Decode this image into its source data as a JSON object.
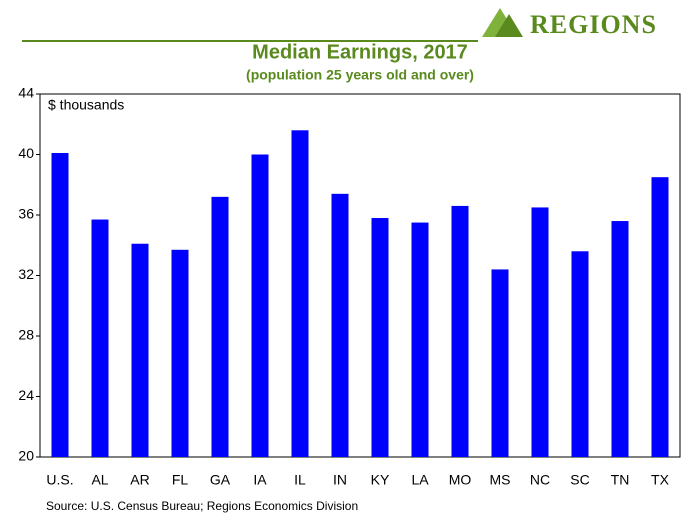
{
  "chart_data": {
    "type": "bar",
    "brand": "REGIONS",
    "title": "Median Earnings, 2017",
    "subtitle": "(population 25 years old and over)",
    "y_label": "$ thousands",
    "source": "Source: U.S. Census Bureau; Regions Economics Division",
    "categories": [
      "U.S.",
      "AL",
      "AR",
      "FL",
      "GA",
      "IA",
      "IL",
      "IN",
      "KY",
      "LA",
      "MO",
      "MS",
      "NC",
      "SC",
      "TN",
      "TX"
    ],
    "values": [
      40.1,
      35.7,
      34.1,
      33.7,
      37.2,
      40.0,
      41.6,
      37.4,
      35.8,
      35.5,
      36.6,
      32.4,
      36.5,
      33.6,
      35.6,
      38.5
    ],
    "color": "#0000ff",
    "ylim": [
      20,
      44
    ],
    "yticks": [
      20,
      24,
      28,
      32,
      36,
      40,
      44
    ],
    "grid": false
  }
}
